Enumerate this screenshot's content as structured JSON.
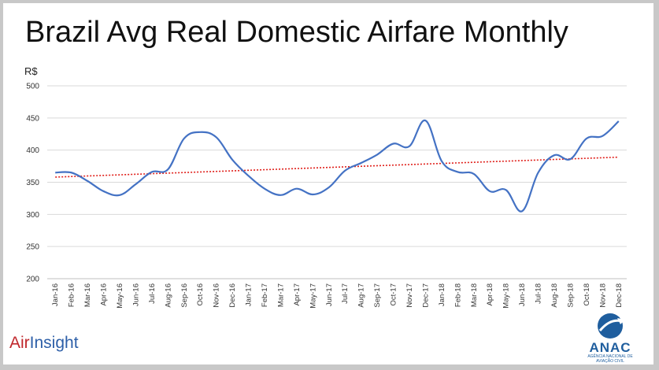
{
  "chart_data": {
    "type": "line",
    "title": "Brazil Avg Real Domestic Airfare Monthly",
    "ylabel": "R$",
    "ylim": [
      200,
      500
    ],
    "yticks": [
      200,
      250,
      300,
      350,
      400,
      450,
      500
    ],
    "grid": true,
    "legend": "none",
    "categories": [
      "Jan-16",
      "Feb-16",
      "Mar-16",
      "Apr-16",
      "May-16",
      "Jun-16",
      "Jul-16",
      "Aug-16",
      "Sep-16",
      "Oct-16",
      "Nov-16",
      "Dec-16",
      "Jan-17",
      "Feb-17",
      "Mar-17",
      "Apr-17",
      "May-17",
      "Jun-17",
      "Jul-17",
      "Aug-17",
      "Sep-17",
      "Oct-17",
      "Nov-17",
      "Dec-17",
      "Jan-18",
      "Feb-18",
      "Mar-18",
      "Apr-18",
      "May-18",
      "Jun-18",
      "Jul-18",
      "Aug-18",
      "Sep-18",
      "Oct-18",
      "Nov-18",
      "Dec-18"
    ],
    "series": [
      {
        "color": "#4472c4",
        "values": [
          365,
          365,
          352,
          336,
          330,
          347,
          366,
          370,
          418,
          428,
          420,
          385,
          360,
          340,
          330,
          340,
          331,
          342,
          368,
          380,
          393,
          410,
          406,
          446,
          383,
          366,
          363,
          336,
          338,
          305,
          365,
          392,
          386,
          418,
          422,
          445
        ]
      }
    ],
    "trendline": {
      "color": "#e0201b",
      "style": "dotted",
      "start": 358,
      "end": 389
    }
  },
  "branding": {
    "left_part1": "Air",
    "left_part2": "Insight",
    "right_name": "ANAC",
    "right_sub": "AGÊNCIA NACIONAL DE AVIAÇÃO CIVIL"
  }
}
